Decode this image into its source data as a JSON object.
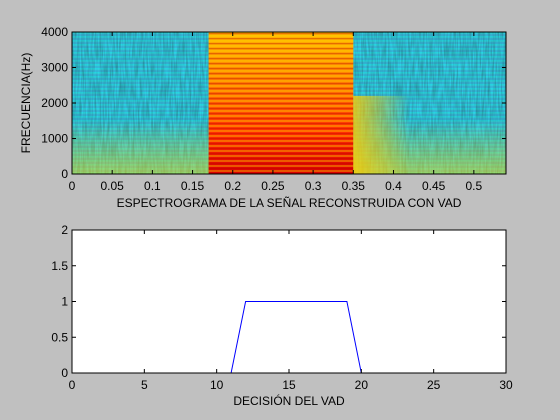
{
  "chart_data": [
    {
      "type": "heatmap",
      "title": "",
      "xlabel": "ESPECTROGRAMA DE LA SEÑAL RECONSTRUIDA CON VAD",
      "ylabel": "FRECUENCIA(Hz)",
      "xlim": [
        0,
        0.54
      ],
      "ylim": [
        0,
        4000
      ],
      "xticks": [
        0,
        0.05,
        0.1,
        0.15,
        0.2,
        0.25,
        0.3,
        0.35,
        0.4,
        0.45,
        0.5
      ],
      "xtick_labels": [
        "0",
        "0.05",
        "0.1",
        "0.15",
        "0.2",
        "0.25",
        "0.3",
        "0.35",
        "0.4",
        "0.45",
        "0.5"
      ],
      "yticks": [
        0,
        1000,
        2000,
        3000,
        4000
      ],
      "ytick_labels": [
        "0",
        "1000",
        "2000",
        "3000",
        "4000"
      ],
      "colormap": "jet",
      "high_energy_segment": {
        "start": 0.17,
        "end": 0.35
      },
      "grid": false
    },
    {
      "type": "line",
      "title": "",
      "xlabel": "DECISIÓN DEL VAD",
      "ylabel": "",
      "xlim": [
        0,
        30
      ],
      "ylim": [
        0,
        2
      ],
      "xticks": [
        0,
        5,
        10,
        15,
        20,
        25,
        30
      ],
      "xtick_labels": [
        "0",
        "5",
        "10",
        "15",
        "20",
        "25",
        "30"
      ],
      "yticks": [
        0,
        0.5,
        1,
        1.5,
        2
      ],
      "ytick_labels": [
        "0",
        "0.5",
        "1",
        "1.5",
        "2"
      ],
      "grid": false,
      "series": [
        {
          "color": "#0000ff",
          "x": [
            0,
            1,
            2,
            3,
            4,
            5,
            6,
            7,
            8,
            9,
            10,
            11,
            12,
            13,
            14,
            15,
            16,
            17,
            18,
            19,
            20,
            21,
            22,
            23,
            24,
            25,
            26,
            27,
            28,
            29,
            30
          ],
          "y": [
            0,
            0,
            0,
            0,
            0,
            0,
            0,
            0,
            0,
            0,
            0,
            0,
            1,
            1,
            1,
            1,
            1,
            1,
            1,
            1,
            0,
            0,
            0,
            0,
            0,
            0,
            0,
            0,
            0,
            0,
            0
          ]
        }
      ]
    }
  ]
}
